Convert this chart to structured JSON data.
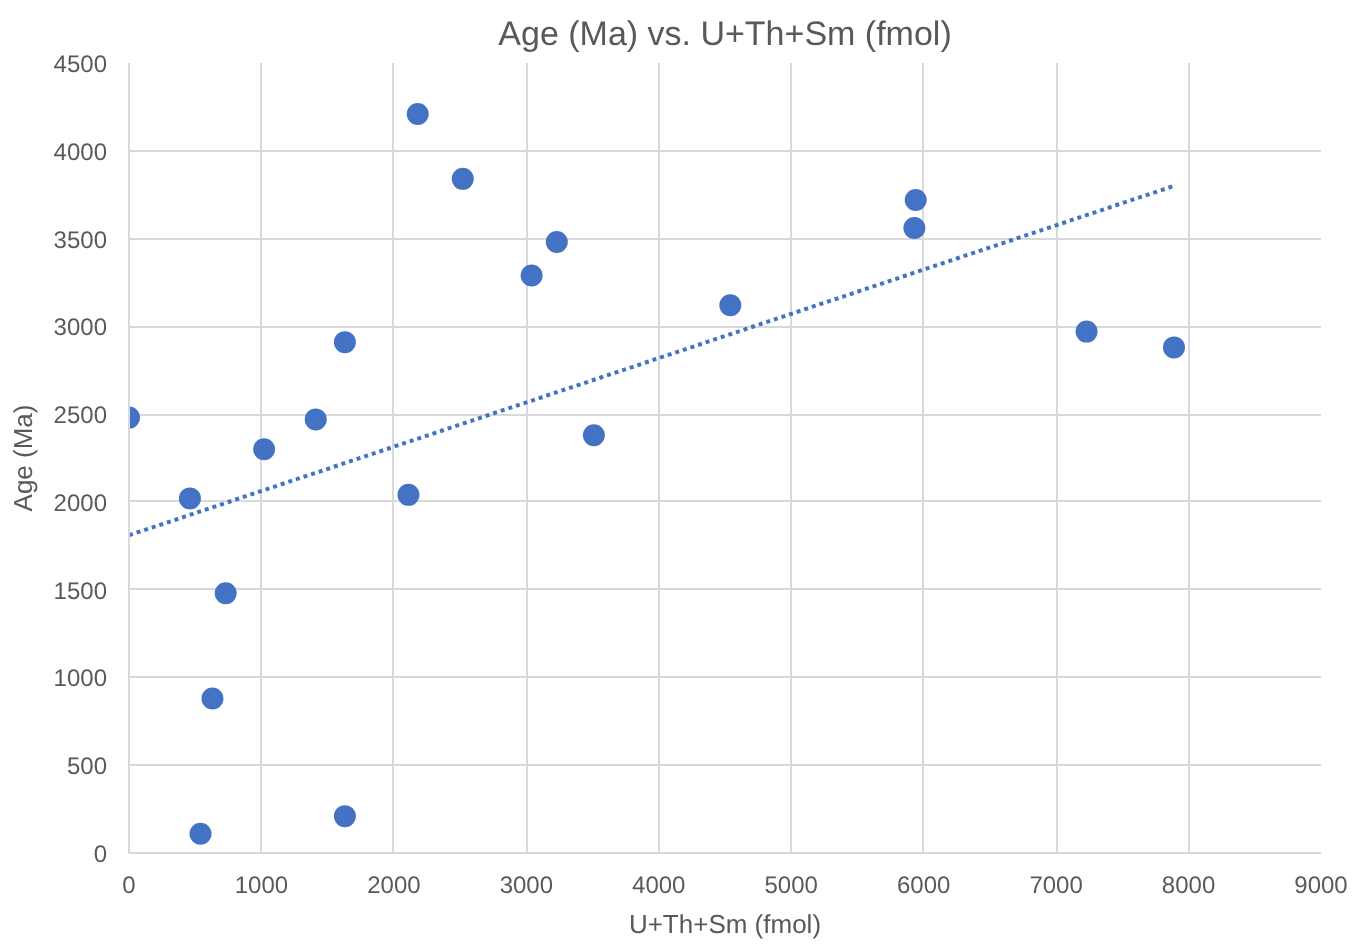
{
  "chart_data": {
    "type": "scatter",
    "title": "Age (Ma) vs. U+Th+Sm (fmol)",
    "xlabel": "U+Th+Sm (fmol)",
    "ylabel": "Age (Ma)",
    "xlim": [
      0,
      9000
    ],
    "xticks": [
      0,
      1000,
      2000,
      3000,
      4000,
      5000,
      6000,
      7000,
      8000,
      9000
    ],
    "ylim": [
      0,
      4500
    ],
    "yticks": [
      0,
      500,
      1000,
      1500,
      2000,
      2500,
      3000,
      3500,
      4000,
      4500
    ],
    "grid": true,
    "series": [
      {
        "marker": "circle",
        "color": "#4472c4",
        "x": [
          0,
          460,
          540,
          630,
          730,
          1020,
          1410,
          1630,
          1630,
          2110,
          2180,
          2520,
          3040,
          3230,
          3510,
          4540,
          5930,
          5940,
          7230,
          7890
        ],
        "values": [
          2480,
          2020,
          110,
          880,
          1480,
          2300,
          2470,
          2910,
          210,
          2040,
          4210,
          3840,
          3290,
          3480,
          2380,
          3120,
          3560,
          3720,
          2970,
          2880
        ]
      },
      {
        "type": "line",
        "color": "#4472c4",
        "line_style": "dotted",
        "x": [
          0,
          7890
        ],
        "values": [
          1810,
          3800
        ]
      }
    ]
  }
}
